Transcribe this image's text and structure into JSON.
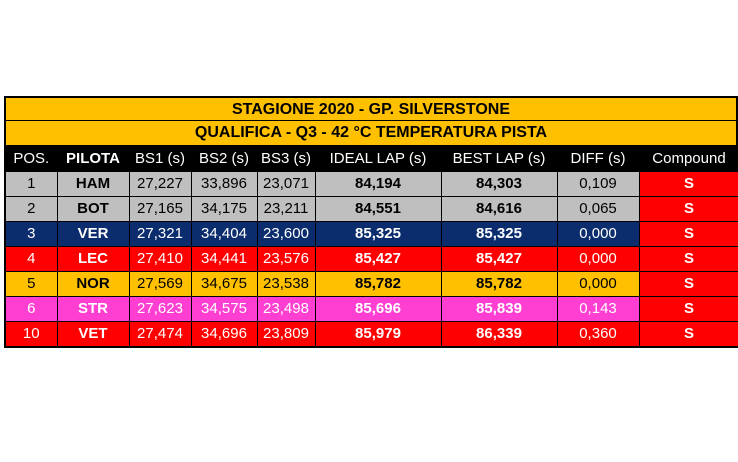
{
  "title": "STAGIONE 2020 - GP. SILVERSTONE",
  "subtitle": "QUALIFICA - Q3 - 42 °C TEMPERATURA PISTA",
  "headers": [
    "POS.",
    "PILOTA",
    "BS1 (s)",
    "BS2 (s)",
    "BS3 (s)",
    "IDEAL LAP (s)",
    "BEST LAP (s)",
    "DIFF (s)",
    "Compound"
  ],
  "colors": {
    "header_bg": "#ffc000",
    "compound_bg": "#ff0000",
    "HAM": "#bfbfbf",
    "BOT": "#bfbfbf",
    "VER": "#0b2d6e",
    "LEC": "#ff0000",
    "NOR": "#ffc000",
    "STR": "#ff3fd2",
    "VET": "#ff0000"
  },
  "rows": [
    {
      "pos": "1",
      "pilota": "HAM",
      "bs1": "27,227",
      "bs2": "33,896",
      "bs3": "23,071",
      "ideal": "84,194",
      "best": "84,303",
      "diff": "0,109",
      "compound": "S",
      "bg": "#bfbfbf",
      "fg": "#000000"
    },
    {
      "pos": "2",
      "pilota": "BOT",
      "bs1": "27,165",
      "bs2": "34,175",
      "bs3": "23,211",
      "ideal": "84,551",
      "best": "84,616",
      "diff": "0,065",
      "compound": "S",
      "bg": "#bfbfbf",
      "fg": "#000000"
    },
    {
      "pos": "3",
      "pilota": "VER",
      "bs1": "27,321",
      "bs2": "34,404",
      "bs3": "23,600",
      "ideal": "85,325",
      "best": "85,325",
      "diff": "0,000",
      "compound": "S",
      "bg": "#0b2d6e",
      "fg": "#ffffff"
    },
    {
      "pos": "4",
      "pilota": "LEC",
      "bs1": "27,410",
      "bs2": "34,441",
      "bs3": "23,576",
      "ideal": "85,427",
      "best": "85,427",
      "diff": "0,000",
      "compound": "S",
      "bg": "#ff0000",
      "fg": "#ffffff"
    },
    {
      "pos": "5",
      "pilota": "NOR",
      "bs1": "27,569",
      "bs2": "34,675",
      "bs3": "23,538",
      "ideal": "85,782",
      "best": "85,782",
      "diff": "0,000",
      "compound": "S",
      "bg": "#ffc000",
      "fg": "#000000"
    },
    {
      "pos": "6",
      "pilota": "STR",
      "bs1": "27,623",
      "bs2": "34,575",
      "bs3": "23,498",
      "ideal": "85,696",
      "best": "85,839",
      "diff": "0,143",
      "compound": "S",
      "bg": "#ff3fd2",
      "fg": "#ffffff"
    },
    {
      "pos": "10",
      "pilota": "VET",
      "bs1": "27,474",
      "bs2": "34,696",
      "bs3": "23,809",
      "ideal": "85,979",
      "best": "86,339",
      "diff": "0,360",
      "compound": "S",
      "bg": "#ff0000",
      "fg": "#ffffff"
    }
  ]
}
